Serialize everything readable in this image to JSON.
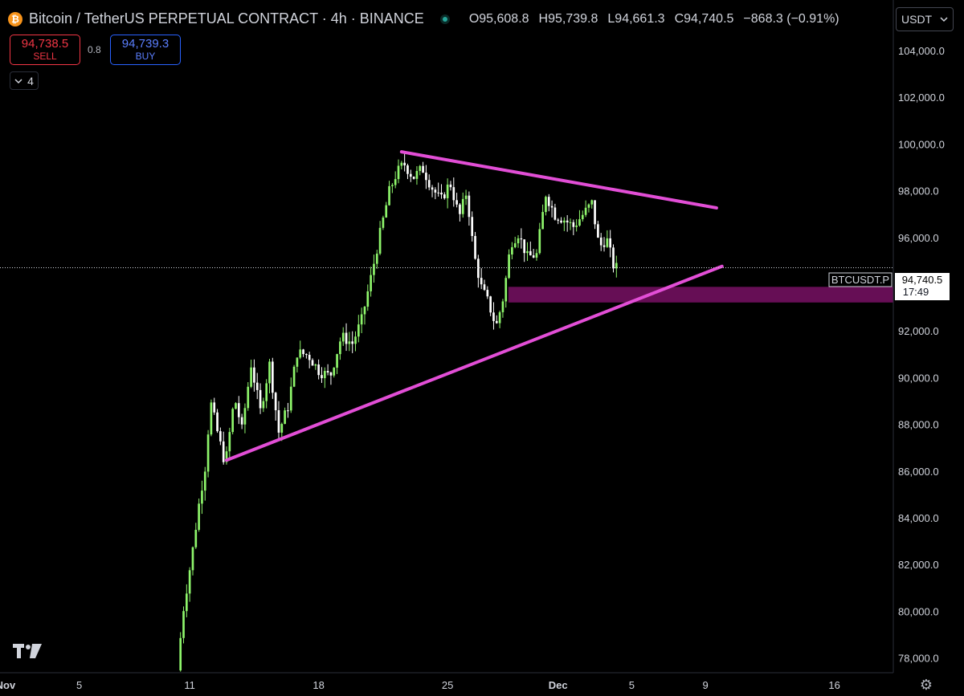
{
  "header": {
    "symbol_title": "Bitcoin / TetherUS PERPETUAL CONTRACT · 4h · BINANCE",
    "logo_glyph": "₿",
    "ohlc": {
      "open": "O95,608.8",
      "high": "H95,739.8",
      "low": "L94,661.3",
      "close": "C94,740.5",
      "change": "−868.3 (−0.91%)"
    }
  },
  "trade": {
    "sell_price": "94,738.5",
    "sell_label": "SELL",
    "spread": "0.8",
    "buy_price": "94,739.3",
    "buy_label": "BUY"
  },
  "indicators_toggle": {
    "count": "4"
  },
  "currency": {
    "selected": "USDT"
  },
  "last_price": {
    "symbol": "BTCUSDT.P",
    "price": "94,740.5",
    "countdown": "17:49"
  },
  "colors": {
    "background": "#000000",
    "up_candle": "#8ef56b",
    "down_candle": "#ffffff",
    "trendline": "#e24ed6",
    "zone": "#6b0f5a"
  },
  "chart_data": {
    "type": "candlestick",
    "interval": "4h",
    "ylim": [
      77400,
      106200
    ],
    "y_ticks": [
      78000,
      80000,
      82000,
      84000,
      86000,
      88000,
      90000,
      92000,
      94000,
      96000,
      98000,
      100000,
      102000,
      104000
    ],
    "y_tick_labels": [
      "78,000.0",
      "80,000.0",
      "82,000.0",
      "84,000.0",
      "86,000.0",
      "88,000.0",
      "90,000.0",
      "92,000.0",
      "94,000.0",
      "96,000.0",
      "98,000.0",
      "100,000.0",
      "102,000.0",
      "104,000.0"
    ],
    "x_range_days": [
      -0.3,
      48.2
    ],
    "x_ticks": [
      {
        "day": 0,
        "label": "Nov"
      },
      {
        "day": 4,
        "label": "5"
      },
      {
        "day": 10,
        "label": "11"
      },
      {
        "day": 17,
        "label": "18"
      },
      {
        "day": 24,
        "label": "25"
      },
      {
        "day": 30,
        "label": "Dec"
      },
      {
        "day": 34,
        "label": "5"
      },
      {
        "day": 38,
        "label": "9"
      },
      {
        "day": 45,
        "label": "16"
      }
    ],
    "close_path": [
      {
        "d": 9.5,
        "p": 77500
      },
      {
        "d": 9.8,
        "p": 80000
      },
      {
        "d": 10.3,
        "p": 82500
      },
      {
        "d": 10.7,
        "p": 84800
      },
      {
        "d": 11.0,
        "p": 86200
      },
      {
        "d": 11.3,
        "p": 89000
      },
      {
        "d": 11.7,
        "p": 87600
      },
      {
        "d": 12.1,
        "p": 86300
      },
      {
        "d": 12.6,
        "p": 89200
      },
      {
        "d": 13.0,
        "p": 87800
      },
      {
        "d": 13.5,
        "p": 90600
      },
      {
        "d": 14.0,
        "p": 88600
      },
      {
        "d": 14.5,
        "p": 90600
      },
      {
        "d": 15.0,
        "p": 87700
      },
      {
        "d": 15.5,
        "p": 88800
      },
      {
        "d": 16.0,
        "p": 91100
      },
      {
        "d": 16.6,
        "p": 91000
      },
      {
        "d": 17.2,
        "p": 90300
      },
      {
        "d": 17.8,
        "p": 90100
      },
      {
        "d": 18.4,
        "p": 91800
      },
      {
        "d": 19.0,
        "p": 91500
      },
      {
        "d": 19.5,
        "p": 92500
      },
      {
        "d": 20.0,
        "p": 94300
      },
      {
        "d": 20.5,
        "p": 96200
      },
      {
        "d": 21.0,
        "p": 98000
      },
      {
        "d": 21.4,
        "p": 98800
      },
      {
        "d": 21.8,
        "p": 99200
      },
      {
        "d": 22.3,
        "p": 98600
      },
      {
        "d": 22.8,
        "p": 99000
      },
      {
        "d": 23.3,
        "p": 98200
      },
      {
        "d": 23.8,
        "p": 97600
      },
      {
        "d": 24.3,
        "p": 98400
      },
      {
        "d": 24.8,
        "p": 96900
      },
      {
        "d": 25.2,
        "p": 98000
      },
      {
        "d": 25.6,
        "p": 95300
      },
      {
        "d": 26.0,
        "p": 93900
      },
      {
        "d": 26.4,
        "p": 93200
      },
      {
        "d": 26.8,
        "p": 92200
      },
      {
        "d": 27.2,
        "p": 93500
      },
      {
        "d": 27.6,
        "p": 95800
      },
      {
        "d": 28.0,
        "p": 96200
      },
      {
        "d": 28.5,
        "p": 95200
      },
      {
        "d": 29.0,
        "p": 95300
      },
      {
        "d": 29.5,
        "p": 97900
      },
      {
        "d": 30.0,
        "p": 97000
      },
      {
        "d": 30.5,
        "p": 96800
      },
      {
        "d": 31.0,
        "p": 96500
      },
      {
        "d": 31.5,
        "p": 97000
      },
      {
        "d": 32.0,
        "p": 97500
      },
      {
        "d": 32.4,
        "p": 95600
      },
      {
        "d": 32.8,
        "p": 96000
      },
      {
        "d": 33.2,
        "p": 94740
      }
    ],
    "trendlines": [
      {
        "name": "resistance",
        "from": {
          "d": 21.5,
          "p": 99700
        },
        "to": {
          "d": 38.6,
          "p": 97300
        }
      },
      {
        "name": "support",
        "from": {
          "d": 12.0,
          "p": 86500
        },
        "to": {
          "d": 38.9,
          "p": 94800
        }
      }
    ],
    "zone": {
      "from_day": 27.3,
      "p_low": 93250,
      "p_high": 93920
    },
    "last_price": 94740.5
  }
}
